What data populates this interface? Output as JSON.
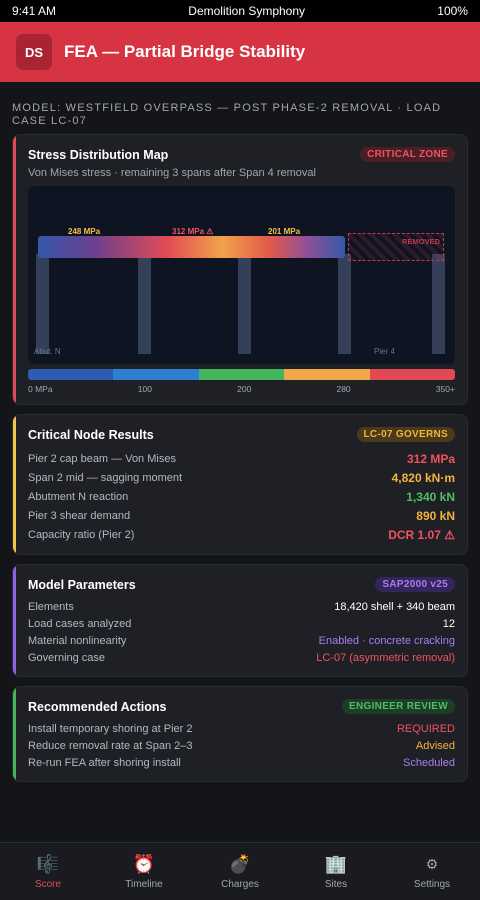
{
  "status_bar": {
    "time": "9:41 AM",
    "title": "Demolition Symphony",
    "battery": "100%"
  },
  "header": {
    "logo": "DS",
    "title": "FEA — Partial Bridge Stability"
  },
  "model_line": "MODEL: WESTFIELD OVERPASS — POST PHASE-2 REMOVAL · LOAD CASE LC-07",
  "colors": {
    "accent_red": "#e14a55",
    "accent_yellow": "#f0c44a",
    "accent_purple": "#8e61e8",
    "accent_green": "#43b55c"
  },
  "stress_card": {
    "title": "Stress Distribution Map",
    "badge": "CRITICAL ZONE",
    "subtitle": "Von Mises stress · remaining 3 spans after Span 4 removal",
    "labels": {
      "left": "248 MPa",
      "mid": "312 MPa ⚠",
      "right": "201 MPa"
    },
    "removed": "REMOVED",
    "abut_label": "Abut. N",
    "pier_label": "Pier 4",
    "scale": [
      "0 MPa",
      "100",
      "200",
      "280",
      "350+"
    ]
  },
  "critical_card": {
    "title": "Critical Node Results",
    "badge": "LC-07 GOVERNS",
    "rows": [
      {
        "label": "Pier 2 cap beam — Von Mises",
        "value": "312 MPa",
        "color": "#f05260"
      },
      {
        "label": "Span 2 mid — sagging moment",
        "value": "4,820 kN·m",
        "color": "#f2b43c"
      },
      {
        "label": "Abutment N reaction",
        "value": "1,340 kN",
        "color": "#4cbf62"
      },
      {
        "label": "Pier 3 shear demand",
        "value": "890 kN",
        "color": "#f2b43c"
      },
      {
        "label": "Capacity ratio (Pier 2)",
        "value": "DCR 1.07 ⚠",
        "color": "#f05260"
      }
    ]
  },
  "params_card": {
    "title": "Model Parameters",
    "badge": "SAP2000 v25",
    "rows": [
      {
        "label": "Elements",
        "value": "18,420 shell + 340 beam",
        "color": "#ffffff"
      },
      {
        "label": "Load cases analyzed",
        "value": "12",
        "color": "#ffffff"
      },
      {
        "label": "Material nonlinearity",
        "value": "Enabled · concrete cracking",
        "color": "#a77ef0"
      },
      {
        "label": "Governing case",
        "value": "LC-07 (asymmetric removal)",
        "color": "#f05260"
      }
    ]
  },
  "actions_card": {
    "title": "Recommended Actions",
    "badge": "ENGINEER REVIEW",
    "rows": [
      {
        "label": "Install temporary shoring at Pier 2",
        "value": "REQUIRED",
        "color": "#f05260"
      },
      {
        "label": "Reduce removal rate at Span 2–3",
        "value": "Advised",
        "color": "#f2b43c"
      },
      {
        "label": "Re-run FEA after shoring install",
        "value": "Scheduled",
        "color": "#a77ef0"
      }
    ]
  },
  "tabs": [
    {
      "label": "Score",
      "icon": "🎼",
      "icon_name": "score-icon"
    },
    {
      "label": "Timeline",
      "icon": "⏰",
      "icon_name": "timeline-icon"
    },
    {
      "label": "Charges",
      "icon": "💣",
      "icon_name": "charges-icon"
    },
    {
      "label": "Sites",
      "icon": "🏢",
      "icon_name": "sites-icon"
    },
    {
      "label": "Settings",
      "icon": "⚙",
      "icon_name": "settings-icon"
    }
  ]
}
